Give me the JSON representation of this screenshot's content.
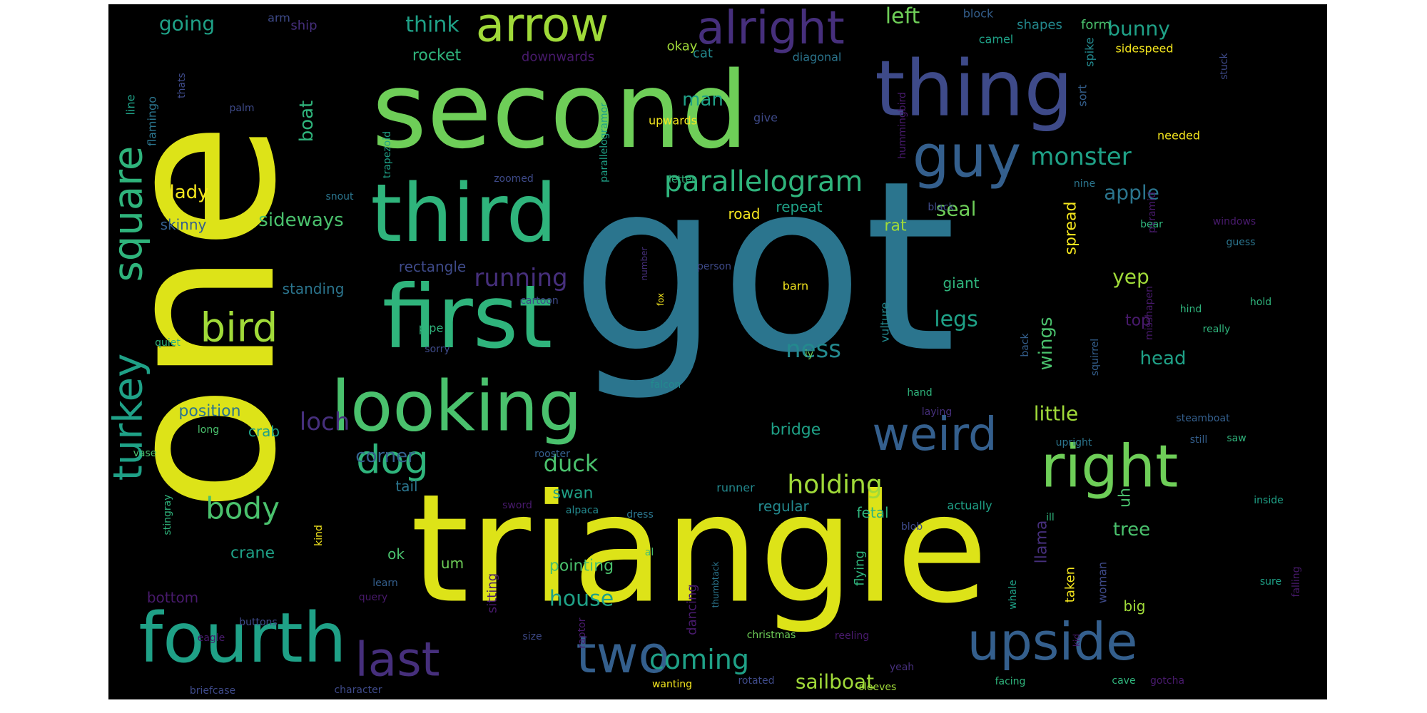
{
  "background": "#000000",
  "palette": {
    "yellow": "#dde318",
    "lime": "#a0da39",
    "green": "#6ece58",
    "emerald": "#4ac16d",
    "jade": "#2fb47c",
    "teal": "#1fa187",
    "tealdark": "#23898e",
    "petrol": "#2b758e",
    "blue": "#345f8d",
    "indigo": "#3e4a89",
    "purple": "#462f7c",
    "violet": "#481a6c",
    "gold": "#f4e61e"
  },
  "words": [
    {
      "text": "got",
      "color": "petrol"
    },
    {
      "text": "one",
      "color": "yellow"
    },
    {
      "text": "triangle",
      "color": "yellow"
    },
    {
      "text": "second",
      "color": "green"
    },
    {
      "text": "first",
      "color": "jade"
    },
    {
      "text": "third",
      "color": "jade"
    },
    {
      "text": "thing",
      "color": "indigo"
    },
    {
      "text": "looking",
      "color": "emerald"
    },
    {
      "text": "fourth",
      "color": "teal"
    },
    {
      "text": "arrow",
      "color": "lime"
    },
    {
      "text": "alright",
      "color": "purple"
    },
    {
      "text": "guy",
      "color": "blue"
    },
    {
      "text": "right",
      "color": "green"
    },
    {
      "text": "upside",
      "color": "blue"
    },
    {
      "text": "weird",
      "color": "blue"
    },
    {
      "text": "two",
      "color": "blue"
    },
    {
      "text": "last",
      "color": "purple"
    },
    {
      "text": "bird",
      "color": "lime"
    },
    {
      "text": "square",
      "color": "jade"
    },
    {
      "text": "turkey",
      "color": "teal"
    },
    {
      "text": "dog",
      "color": "jade"
    },
    {
      "text": "body",
      "color": "emerald"
    },
    {
      "text": "parallelogram",
      "color": "jade"
    },
    {
      "text": "holding",
      "color": "lime"
    },
    {
      "text": "coming",
      "color": "teal"
    },
    {
      "text": "monster",
      "color": "teal"
    },
    {
      "text": "running",
      "color": "purple"
    },
    {
      "text": "loch",
      "color": "purple"
    },
    {
      "text": "ness",
      "color": "tealdark"
    },
    {
      "text": "house",
      "color": "teal"
    },
    {
      "text": "sailboat",
      "color": "lime"
    },
    {
      "text": "duck",
      "color": "emerald"
    },
    {
      "text": "corner",
      "color": "blue"
    },
    {
      "text": "left",
      "color": "green"
    },
    {
      "text": "yep",
      "color": "lime"
    },
    {
      "text": "legs",
      "color": "teal"
    },
    {
      "text": "bunny",
      "color": "teal"
    },
    {
      "text": "apple",
      "color": "petrol"
    },
    {
      "text": "little",
      "color": "lime"
    },
    {
      "text": "seal",
      "color": "green"
    },
    {
      "text": "think",
      "color": "teal"
    },
    {
      "text": "going",
      "color": "teal"
    },
    {
      "text": "boat",
      "color": "jade"
    },
    {
      "text": "man",
      "color": "teal"
    },
    {
      "text": "tree",
      "color": "emerald"
    },
    {
      "text": "head",
      "color": "teal"
    },
    {
      "text": "sideways",
      "color": "emerald"
    },
    {
      "text": "wings",
      "color": "emerald"
    },
    {
      "text": "lady",
      "color": "gold"
    },
    {
      "text": "spread",
      "color": "gold"
    },
    {
      "text": "rocket",
      "color": "jade"
    },
    {
      "text": "swan",
      "color": "teal"
    },
    {
      "text": "pointing",
      "color": "emerald"
    },
    {
      "text": "crane",
      "color": "teal"
    },
    {
      "text": "llama",
      "color": "purple"
    },
    {
      "text": "bridge",
      "color": "teal"
    },
    {
      "text": "position",
      "color": "petrol"
    },
    {
      "text": "standing",
      "color": "petrol"
    },
    {
      "text": "rectangle",
      "color": "indigo"
    },
    {
      "text": "skinny",
      "color": "blue"
    },
    {
      "text": "crab",
      "color": "teal"
    },
    {
      "text": "tail",
      "color": "petrol"
    },
    {
      "text": "regular",
      "color": "tealdark"
    },
    {
      "text": "repeat",
      "color": "teal"
    },
    {
      "text": "road",
      "color": "gold"
    },
    {
      "text": "rat",
      "color": "lime"
    },
    {
      "text": "giant",
      "color": "jade"
    },
    {
      "text": "top",
      "color": "violet"
    },
    {
      "text": "uh",
      "color": "emerald"
    },
    {
      "text": "big",
      "color": "lime"
    },
    {
      "text": "taken",
      "color": "gold"
    },
    {
      "text": "flying",
      "color": "jade"
    },
    {
      "text": "dancing",
      "color": "violet"
    },
    {
      "text": "sitting",
      "color": "violet"
    },
    {
      "text": "bottom",
      "color": "violet"
    },
    {
      "text": "ok",
      "color": "emerald"
    },
    {
      "text": "um",
      "color": "green"
    },
    {
      "text": "fetal",
      "color": "jade"
    },
    {
      "text": "woman",
      "color": "indigo"
    },
    {
      "text": "vulture",
      "color": "tealdark"
    },
    {
      "text": "okay",
      "color": "lime"
    },
    {
      "text": "cat",
      "color": "tealdark"
    },
    {
      "text": "downwards",
      "color": "violet"
    },
    {
      "text": "diagonal",
      "color": "petrol"
    },
    {
      "text": "shapes",
      "color": "tealdark"
    },
    {
      "text": "form",
      "color": "emerald"
    },
    {
      "text": "block",
      "color": "blue"
    },
    {
      "text": "camel",
      "color": "teal"
    },
    {
      "text": "spike",
      "color": "tealdark"
    },
    {
      "text": "sidespeed",
      "color": "gold"
    },
    {
      "text": "ship",
      "color": "purple"
    },
    {
      "text": "arm",
      "color": "indigo"
    },
    {
      "text": "line",
      "color": "teal"
    },
    {
      "text": "flamingo",
      "color": "petrol"
    },
    {
      "text": "thats",
      "color": "indigo"
    },
    {
      "text": "palm",
      "color": "indigo"
    },
    {
      "text": "trapezoid",
      "color": "teal"
    },
    {
      "text": "parallelogramor",
      "color": "teal"
    },
    {
      "text": "hummingbird",
      "color": "violet"
    },
    {
      "text": "upwards",
      "color": "gold"
    },
    {
      "text": "give",
      "color": "indigo"
    },
    {
      "text": "sort",
      "color": "blue"
    },
    {
      "text": "needed",
      "color": "gold"
    },
    {
      "text": "stuck",
      "color": "indigo"
    },
    {
      "text": "zoomed",
      "color": "indigo"
    },
    {
      "text": "letter",
      "color": "jade"
    },
    {
      "text": "nine",
      "color": "petrol"
    },
    {
      "text": "pyramid",
      "color": "violet"
    },
    {
      "text": "bear",
      "color": "jade"
    },
    {
      "text": "windows",
      "color": "violet"
    },
    {
      "text": "guess",
      "color": "petrol"
    },
    {
      "text": "snout",
      "color": "petrol"
    },
    {
      "text": "black",
      "color": "indigo"
    },
    {
      "text": "number",
      "color": "purple"
    },
    {
      "text": "fox",
      "color": "gold"
    },
    {
      "text": "person",
      "color": "indigo"
    },
    {
      "text": "cartoon",
      "color": "indigo"
    },
    {
      "text": "barn",
      "color": "gold"
    },
    {
      "text": "pipe",
      "color": "jade"
    },
    {
      "text": "sorry",
      "color": "indigo"
    },
    {
      "text": "quiet",
      "color": "jade"
    },
    {
      "text": "squirrel",
      "color": "blue"
    },
    {
      "text": "misshapen",
      "color": "violet"
    },
    {
      "text": "back",
      "color": "blue"
    },
    {
      "text": "hind",
      "color": "jade"
    },
    {
      "text": "hold",
      "color": "jade"
    },
    {
      "text": "really",
      "color": "jade"
    },
    {
      "text": "iy",
      "color": "green"
    },
    {
      "text": "falcon",
      "color": "tealdark"
    },
    {
      "text": "hand",
      "color": "jade"
    },
    {
      "text": "laying",
      "color": "purple"
    },
    {
      "text": "upright",
      "color": "petrol"
    },
    {
      "text": "steamboat",
      "color": "blue"
    },
    {
      "text": "still",
      "color": "blue"
    },
    {
      "text": "saw",
      "color": "jade"
    },
    {
      "text": "long",
      "color": "emerald"
    },
    {
      "text": "rooster",
      "color": "blue"
    },
    {
      "text": "vase",
      "color": "emerald"
    },
    {
      "text": "stingray",
      "color": "jade"
    },
    {
      "text": "runner",
      "color": "tealdark"
    },
    {
      "text": "actually",
      "color": "teal"
    },
    {
      "text": "inside",
      "color": "teal"
    },
    {
      "text": "sword",
      "color": "violet"
    },
    {
      "text": "alpaca",
      "color": "tealdark"
    },
    {
      "text": "kind",
      "color": "gold"
    },
    {
      "text": "dress",
      "color": "petrol"
    },
    {
      "text": "ill",
      "color": "jade"
    },
    {
      "text": "blob",
      "color": "indigo"
    },
    {
      "text": "al",
      "color": "emerald"
    },
    {
      "text": "thumbtack",
      "color": "petrol"
    },
    {
      "text": "learn",
      "color": "blue"
    },
    {
      "text": "query",
      "color": "violet"
    },
    {
      "text": "eagle",
      "color": "violet"
    },
    {
      "text": "buttons",
      "color": "indigo"
    },
    {
      "text": "sure",
      "color": "teal"
    },
    {
      "text": "falling",
      "color": "violet"
    },
    {
      "text": "whale",
      "color": "teal"
    },
    {
      "text": "kid",
      "color": "violet"
    },
    {
      "text": "raptor",
      "color": "violet"
    },
    {
      "text": "size",
      "color": "indigo"
    },
    {
      "text": "christmas",
      "color": "green"
    },
    {
      "text": "reeling",
      "color": "violet"
    },
    {
      "text": "yeah",
      "color": "purple"
    },
    {
      "text": "briefcase",
      "color": "indigo"
    },
    {
      "text": "character",
      "color": "indigo"
    },
    {
      "text": "wanting",
      "color": "gold"
    },
    {
      "text": "rotated",
      "color": "indigo"
    },
    {
      "text": "sleeves",
      "color": "lime"
    },
    {
      "text": "facing",
      "color": "jade"
    },
    {
      "text": "cave",
      "color": "jade"
    },
    {
      "text": "gotcha",
      "color": "violet"
    }
  ]
}
